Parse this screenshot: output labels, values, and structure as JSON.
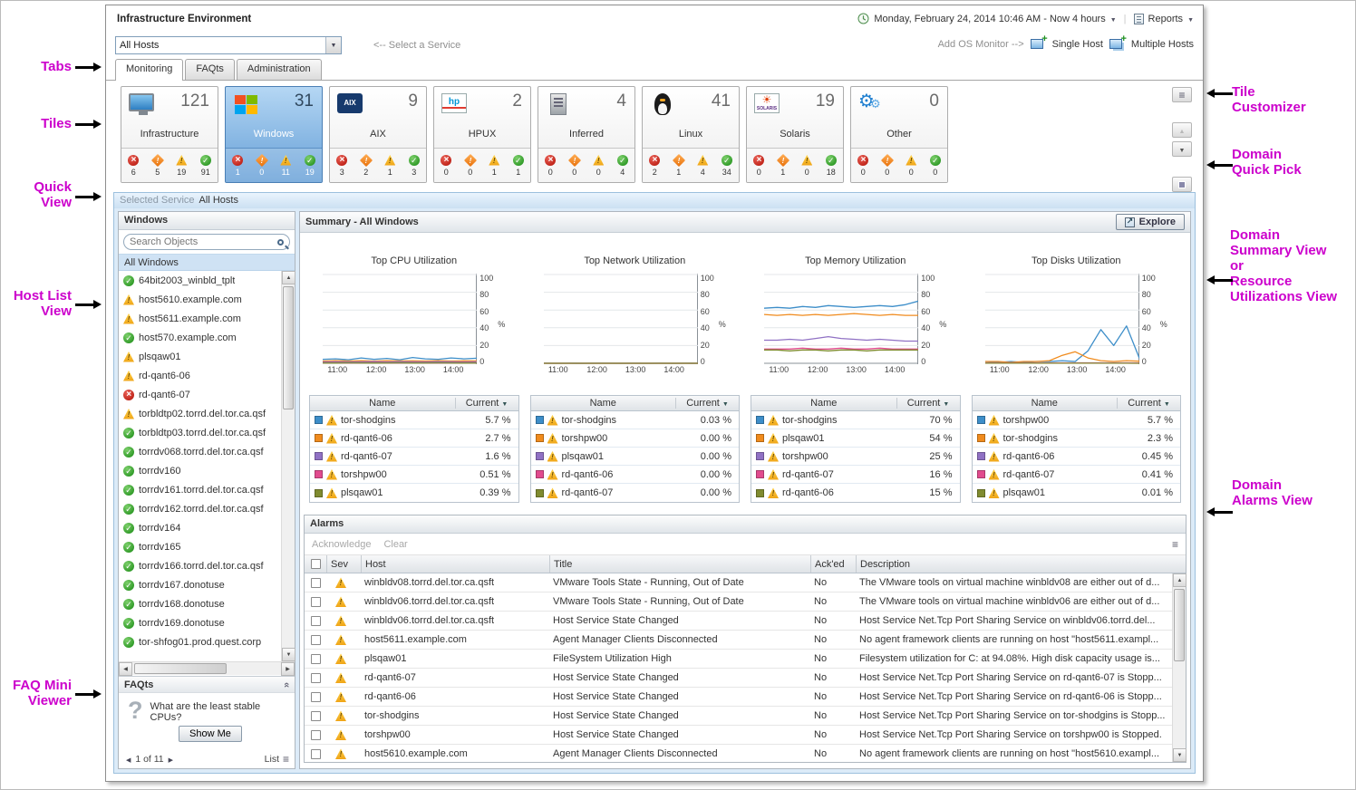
{
  "annotations": {
    "left": [
      {
        "label": "Tabs"
      },
      {
        "label": "Tiles"
      },
      {
        "label": "Quick\nView"
      },
      {
        "label": "Host List\nView"
      },
      {
        "label": "FAQ Mini\nViewer"
      }
    ],
    "right": [
      {
        "label": "Tile\nCustomizer"
      },
      {
        "label": "Domain\nQuick Pick"
      },
      {
        "label": "Domain\nSummary View\nor\nResource\nUtilizations View"
      },
      {
        "label": "Domain\nAlarms View"
      }
    ]
  },
  "header": {
    "title": "Infrastructure Environment",
    "time_range": "Monday, February 24, 2014 10:46 AM - Now 4 hours",
    "reports_label": "Reports"
  },
  "toolbar": {
    "service_selector_value": "All Hosts",
    "select_service_hint": "<-- Select a Service",
    "add_os_monitor_hint": "Add OS Monitor -->",
    "single_host_label": "Single Host",
    "multiple_hosts_label": "Multiple Hosts"
  },
  "tabs": [
    {
      "label": "Monitoring",
      "state": "active"
    },
    {
      "label": "FAQts",
      "state": ""
    },
    {
      "label": "Administration",
      "state": ""
    }
  ],
  "tiles": [
    {
      "label": "Infrastructure",
      "count": "121",
      "icon": "icon-infrastructure",
      "state": "",
      "counts": {
        "fatal": "6",
        "critical": "5",
        "warning": "19",
        "normal": "91"
      }
    },
    {
      "label": "Windows",
      "count": "31",
      "icon": "icon-windows",
      "state": "selected",
      "counts": {
        "fatal": "1",
        "critical": "0",
        "warning": "11",
        "normal": "19"
      }
    },
    {
      "label": "AIX",
      "count": "9",
      "icon": "icon-aix",
      "state": "",
      "counts": {
        "fatal": "3",
        "critical": "2",
        "warning": "1",
        "normal": "3"
      }
    },
    {
      "label": "HPUX",
      "count": "2",
      "icon": "icon-hpux",
      "state": "",
      "counts": {
        "fatal": "0",
        "critical": "0",
        "warning": "1",
        "normal": "1"
      }
    },
    {
      "label": "Inferred",
      "count": "4",
      "icon": "icon-inferred",
      "state": "",
      "counts": {
        "fatal": "0",
        "critical": "0",
        "warning": "0",
        "normal": "4"
      }
    },
    {
      "label": "Linux",
      "count": "41",
      "icon": "icon-linux",
      "state": "",
      "counts": {
        "fatal": "2",
        "critical": "1",
        "warning": "4",
        "normal": "34"
      }
    },
    {
      "label": "Solaris",
      "count": "19",
      "icon": "icon-solaris",
      "state": "",
      "counts": {
        "fatal": "0",
        "critical": "1",
        "warning": "0",
        "normal": "18"
      }
    },
    {
      "label": "Other",
      "count": "0",
      "icon": "icon-other",
      "state": "",
      "counts": {
        "fatal": "0",
        "critical": "0",
        "warning": "0",
        "normal": "0"
      }
    }
  ],
  "quick_view": {
    "selected_service_label": "Selected Service",
    "selected_service_value": "All Hosts",
    "host_panel": {
      "title": "Windows",
      "search_placeholder": "Search Objects",
      "group_label": "All Windows",
      "hosts": [
        {
          "name": "64bit2003_winbld_tplt",
          "status": "normal"
        },
        {
          "name": "host5610.example.com",
          "status": "warning"
        },
        {
          "name": "host5611.example.com",
          "status": "warning"
        },
        {
          "name": "host570.example.com",
          "status": "normal"
        },
        {
          "name": "plsqaw01",
          "status": "warning"
        },
        {
          "name": "rd-qant6-06",
          "status": "warning"
        },
        {
          "name": "rd-qant6-07",
          "status": "fatal"
        },
        {
          "name": "torbldtp02.torrd.del.tor.ca.qsf",
          "status": "warning"
        },
        {
          "name": "torbldtp03.torrd.del.tor.ca.qsf",
          "status": "normal"
        },
        {
          "name": "torrdv068.torrd.del.tor.ca.qsf",
          "status": "normal"
        },
        {
          "name": "torrdv160",
          "status": "normal"
        },
        {
          "name": "torrdv161.torrd.del.tor.ca.qsf",
          "status": "normal"
        },
        {
          "name": "torrdv162.torrd.del.tor.ca.qsf",
          "status": "normal"
        },
        {
          "name": "torrdv164",
          "status": "normal"
        },
        {
          "name": "torrdv165",
          "status": "normal"
        },
        {
          "name": "torrdv166.torrd.del.tor.ca.qsf",
          "status": "normal"
        },
        {
          "name": "torrdv167.donotuse",
          "status": "normal"
        },
        {
          "name": "torrdv168.donotuse",
          "status": "normal"
        },
        {
          "name": "torrdv169.donotuse",
          "status": "normal"
        },
        {
          "name": "tor-shfog01.prod.quest.corp",
          "status": "normal"
        }
      ]
    },
    "faq": {
      "title": "FAQts",
      "question": "What are the least stable\nCPUs?",
      "show_me_label": "Show Me",
      "pager_text": "1 of 11",
      "list_label": "List"
    },
    "summary": {
      "title": "Summary - All Windows",
      "explore_label": "Explore"
    },
    "alarms": {
      "title": "Alarms",
      "acknowledge_label": "Acknowledge",
      "clear_label": "Clear",
      "columns": {
        "sev": "Sev",
        "host": "Host",
        "title": "Title",
        "acked": "Ack'ed",
        "description": "Description"
      },
      "rows": [
        {
          "sev": "warning",
          "host": "winbldv08.torrd.del.tor.ca.qsft",
          "title": "VMware Tools State - Running, Out of Date",
          "acked": "No",
          "desc": "The VMware tools on virtual machine winbldv08 are either out of d..."
        },
        {
          "sev": "warning",
          "host": "winbldv06.torrd.del.tor.ca.qsft",
          "title": "VMware Tools State - Running, Out of Date",
          "acked": "No",
          "desc": "The VMware tools on virtual machine winbldv06 are either out of d..."
        },
        {
          "sev": "warning",
          "host": "winbldv06.torrd.del.tor.ca.qsft",
          "title": "Host Service State Changed",
          "acked": "No",
          "desc": "Host Service Net.Tcp Port Sharing Service on winbldv06.torrd.del..."
        },
        {
          "sev": "warning",
          "host": "host5611.example.com",
          "title": "Agent Manager Clients Disconnected",
          "acked": "No",
          "desc": "No agent framework clients are running on host \"host5611.exampl..."
        },
        {
          "sev": "warning",
          "host": "plsqaw01",
          "title": "FileSystem Utilization High",
          "acked": "No",
          "desc": "Filesystem utilization for C: at 94.08%. High disk capacity usage is..."
        },
        {
          "sev": "warning",
          "host": "rd-qant6-07",
          "title": "Host Service State Changed",
          "acked": "No",
          "desc": "Host Service Net.Tcp Port Sharing Service on rd-qant6-07 is Stopp..."
        },
        {
          "sev": "warning",
          "host": "rd-qant6-06",
          "title": "Host Service State Changed",
          "acked": "No",
          "desc": "Host Service Net.Tcp Port Sharing Service on rd-qant6-06 is Stopp..."
        },
        {
          "sev": "warning",
          "host": "tor-shodgins",
          "title": "Host Service State Changed",
          "acked": "No",
          "desc": "Host Service Net.Tcp Port Sharing Service on tor-shodgins is Stopp..."
        },
        {
          "sev": "warning",
          "host": "torshpw00",
          "title": "Host Service State Changed",
          "acked": "No",
          "desc": "Host Service Net.Tcp Port Sharing Service on torshpw00 is Stopped."
        },
        {
          "sev": "warning",
          "host": "host5610.example.com",
          "title": "Agent Manager Clients Disconnected",
          "acked": "No",
          "desc": "No agent framework clients are running on host \"host5610.exampl..."
        }
      ]
    }
  },
  "chart_data": [
    {
      "type": "line",
      "title": "Top CPU Utilization",
      "ylabel": "%",
      "ylim": [
        0,
        100
      ],
      "yticks": [
        0,
        20,
        40,
        60,
        80,
        100
      ],
      "x_labels": [
        "11:00",
        "12:00",
        "13:00",
        "14:00"
      ],
      "series": [
        {
          "name": "tor-shodgins",
          "color": "#3d8ec9",
          "values": [
            4.5,
            5,
            4,
            6,
            4.5,
            5.5,
            4,
            6.5,
            5,
            4.5,
            6,
            5,
            5.7
          ]
        },
        {
          "name": "rd-qant6-06",
          "color": "#f08b1d",
          "values": [
            2.5,
            3,
            2.6,
            2.9,
            2.5,
            3,
            2.7,
            2.8,
            2.5,
            2.9,
            2.6,
            2.8,
            2.7
          ]
        },
        {
          "name": "rd-qant6-07",
          "color": "#9071c4",
          "values": [
            1.5,
            1.7,
            1.5,
            1.6,
            1.8,
            1.5,
            1.7,
            1.6,
            1.5,
            1.7,
            1.6,
            1.5,
            1.6
          ]
        },
        {
          "name": "torshpw00",
          "color": "#e14b8e",
          "values": [
            0.5,
            0.6,
            0.4,
            0.5,
            0.6,
            0.5,
            0.4,
            0.6,
            0.5,
            0.4,
            0.5,
            0.6,
            0.51
          ]
        },
        {
          "name": "plsqaw01",
          "color": "#808b2f",
          "values": [
            0.4,
            0.3,
            0.5,
            0.4,
            0.3,
            0.4,
            0.5,
            0.3,
            0.4,
            0.5,
            0.4,
            0.3,
            0.39
          ]
        }
      ],
      "table": {
        "name_header": "Name",
        "current_header": "Current",
        "rows": [
          {
            "name": "tor-shodgins",
            "value": "5.7 %",
            "color": "#3d8ec9"
          },
          {
            "name": "rd-qant6-06",
            "value": "2.7 %",
            "color": "#f08b1d"
          },
          {
            "name": "rd-qant6-07",
            "value": "1.6 %",
            "color": "#9071c4"
          },
          {
            "name": "torshpw00",
            "value": "0.51 %",
            "color": "#e14b8e"
          },
          {
            "name": "plsqaw01",
            "value": "0.39 %",
            "color": "#808b2f"
          }
        ]
      }
    },
    {
      "type": "line",
      "title": "Top Network Utilization",
      "ylabel": "%",
      "ylim": [
        0,
        100
      ],
      "yticks": [
        0,
        20,
        40,
        60,
        80,
        100
      ],
      "x_labels": [
        "11:00",
        "12:00",
        "13:00",
        "14:00"
      ],
      "series": [
        {
          "name": "tor-shodgins",
          "color": "#3d8ec9",
          "values": [
            0.1,
            0.05,
            0.08,
            0.04,
            0.06,
            0.1,
            0.05,
            0.07,
            0.04,
            0.06,
            0.05,
            0.08,
            0.03
          ]
        },
        {
          "name": "torshpw00",
          "color": "#f08b1d",
          "values": [
            0.02,
            0.02,
            0.02,
            0.02,
            0.02,
            0.02,
            0.02,
            0.02,
            0.02,
            0.02,
            0.02,
            0.02,
            0
          ]
        },
        {
          "name": "plsqaw01",
          "color": "#9071c4",
          "values": [
            0.01,
            0.01,
            0.01,
            0.01,
            0.01,
            0.01,
            0.01,
            0.01,
            0.01,
            0.01,
            0.01,
            0.01,
            0
          ]
        },
        {
          "name": "rd-qant6-06",
          "color": "#e14b8e",
          "values": [
            0.01,
            0.01,
            0.01,
            0.01,
            0.01,
            0.01,
            0.01,
            0.01,
            0.01,
            0.01,
            0.01,
            0.01,
            0
          ]
        },
        {
          "name": "rd-qant6-07",
          "color": "#808b2f",
          "values": [
            0.01,
            0.01,
            0.01,
            0.01,
            0.01,
            0.01,
            0.01,
            0.01,
            0.01,
            0.01,
            0.01,
            0.01,
            0
          ]
        }
      ],
      "table": {
        "name_header": "Name",
        "current_header": "Current",
        "rows": [
          {
            "name": "tor-shodgins",
            "value": "0.03 %",
            "color": "#3d8ec9"
          },
          {
            "name": "torshpw00",
            "value": "0.00 %",
            "color": "#f08b1d"
          },
          {
            "name": "plsqaw01",
            "value": "0.00 %",
            "color": "#9071c4"
          },
          {
            "name": "rd-qant6-06",
            "value": "0.00 %",
            "color": "#e14b8e"
          },
          {
            "name": "rd-qant6-07",
            "value": "0.00 %",
            "color": "#808b2f"
          }
        ]
      }
    },
    {
      "type": "line",
      "title": "Top Memory Utilization",
      "ylabel": "%",
      "ylim": [
        0,
        100
      ],
      "yticks": [
        0,
        20,
        40,
        60,
        80,
        100
      ],
      "x_labels": [
        "11:00",
        "12:00",
        "13:00",
        "14:00"
      ],
      "series": [
        {
          "name": "tor-shodgins",
          "color": "#3d8ec9",
          "values": [
            62,
            63,
            62,
            64,
            63,
            65,
            64,
            63,
            64,
            65,
            64,
            66,
            70
          ]
        },
        {
          "name": "plsqaw01",
          "color": "#f08b1d",
          "values": [
            55,
            54,
            55,
            54,
            55,
            54,
            55,
            56,
            55,
            54,
            55,
            54,
            54
          ]
        },
        {
          "name": "torshpw00",
          "color": "#9071c4",
          "values": [
            26,
            26,
            27,
            26,
            28,
            30,
            28,
            27,
            26,
            27,
            26,
            25,
            25
          ]
        },
        {
          "name": "rd-qant6-07",
          "color": "#e14b8e",
          "values": [
            16,
            16,
            16,
            17,
            16,
            16,
            17,
            16,
            16,
            17,
            16,
            16,
            16
          ]
        },
        {
          "name": "rd-qant6-06",
          "color": "#808b2f",
          "values": [
            15,
            15,
            14,
            15,
            15,
            14,
            15,
            15,
            14,
            15,
            15,
            15,
            15
          ]
        }
      ],
      "table": {
        "name_header": "Name",
        "current_header": "Current",
        "rows": [
          {
            "name": "tor-shodgins",
            "value": "70 %",
            "color": "#3d8ec9"
          },
          {
            "name": "plsqaw01",
            "value": "54 %",
            "color": "#f08b1d"
          },
          {
            "name": "torshpw00",
            "value": "25 %",
            "color": "#9071c4"
          },
          {
            "name": "rd-qant6-07",
            "value": "16 %",
            "color": "#e14b8e"
          },
          {
            "name": "rd-qant6-06",
            "value": "15 %",
            "color": "#808b2f"
          }
        ]
      }
    },
    {
      "type": "line",
      "title": "Top Disks Utilization",
      "ylabel": "%",
      "ylim": [
        0,
        100
      ],
      "yticks": [
        0,
        20,
        40,
        60,
        80,
        100
      ],
      "x_labels": [
        "11:00",
        "12:00",
        "13:00",
        "14:00"
      ],
      "series": [
        {
          "name": "torshpw00",
          "color": "#3d8ec9",
          "values": [
            2,
            1,
            2,
            1,
            2,
            2,
            3,
            2,
            14,
            38,
            20,
            42,
            5.7
          ]
        },
        {
          "name": "tor-shodgins",
          "color": "#f08b1d",
          "values": [
            2,
            2,
            1,
            2,
            2,
            3,
            9,
            13,
            6,
            3,
            2,
            3,
            2.3
          ]
        },
        {
          "name": "rd-qant6-06",
          "color": "#9071c4",
          "values": [
            0.5,
            0.5,
            0.5,
            0.5,
            0.5,
            0.5,
            0.5,
            0.5,
            0.5,
            0.5,
            0.5,
            0.5,
            0.45
          ]
        },
        {
          "name": "rd-qant6-07",
          "color": "#e14b8e",
          "values": [
            0.4,
            0.4,
            0.4,
            0.4,
            0.4,
            0.4,
            0.4,
            0.4,
            0.4,
            0.4,
            0.4,
            0.4,
            0.41
          ]
        },
        {
          "name": "plsqaw01",
          "color": "#808b2f",
          "values": [
            0.1,
            0.1,
            0.1,
            0.1,
            0.1,
            0.1,
            0.1,
            0.1,
            0.1,
            0.1,
            0.1,
            0.1,
            0.01
          ]
        }
      ],
      "table": {
        "name_header": "Name",
        "current_header": "Current",
        "rows": [
          {
            "name": "torshpw00",
            "value": "5.7 %",
            "color": "#3d8ec9"
          },
          {
            "name": "tor-shodgins",
            "value": "2.3 %",
            "color": "#f08b1d"
          },
          {
            "name": "rd-qant6-06",
            "value": "0.45 %",
            "color": "#9071c4"
          },
          {
            "name": "rd-qant6-07",
            "value": "0.41 %",
            "color": "#e14b8e"
          },
          {
            "name": "plsqaw01",
            "value": "0.01 %",
            "color": "#808b2f"
          }
        ]
      }
    }
  ]
}
